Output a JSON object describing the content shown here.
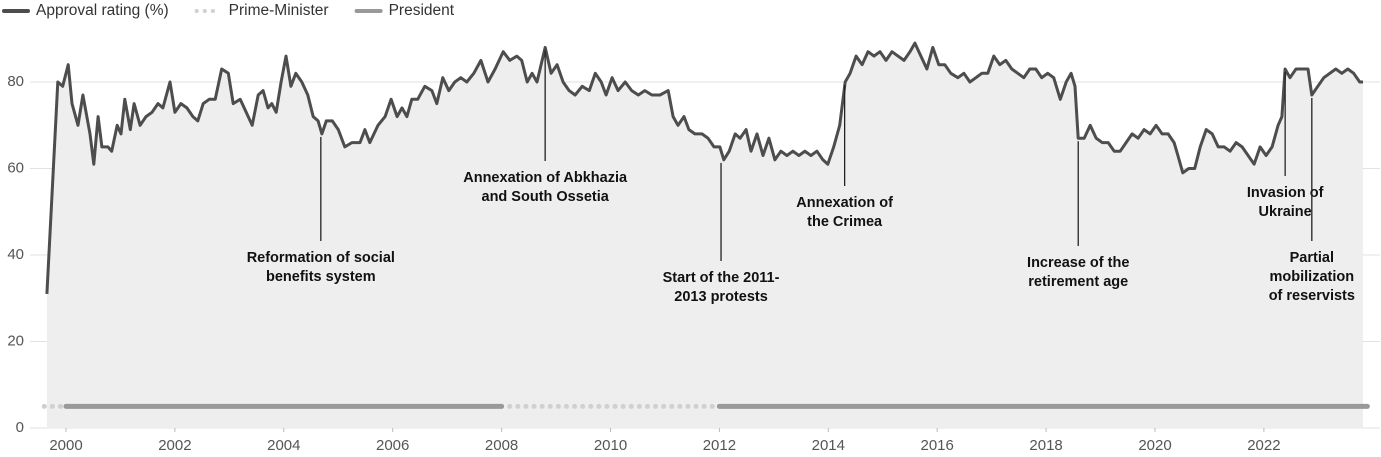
{
  "chart_data": {
    "type": "line",
    "xlim": [
      1999.6,
      2023.9
    ],
    "xticks": [
      2000,
      2002,
      2004,
      2006,
      2008,
      2010,
      2012,
      2014,
      2016,
      2018,
      2020,
      2022
    ],
    "ylim": [
      0,
      90
    ],
    "yticks": [
      0,
      20,
      40,
      60,
      80
    ],
    "grid": true,
    "legend": "top-left",
    "series": [
      {
        "name": "Approval rating (%)",
        "color": "#4d4d4d",
        "fill": "#eeeeee",
        "x": [
          1999.65,
          1999.74,
          1999.85,
          1999.94,
          2000.04,
          2000.11,
          2000.22,
          2000.31,
          2000.44,
          2000.51,
          2000.59,
          2000.66,
          2000.77,
          2000.84,
          2000.94,
          2001.01,
          2001.08,
          2001.18,
          2001.25,
          2001.36,
          2001.47,
          2001.58,
          2001.69,
          2001.78,
          2001.91,
          2002.0,
          2002.11,
          2002.22,
          2002.33,
          2002.42,
          2002.52,
          2002.63,
          2002.74,
          2002.86,
          2002.98,
          2003.07,
          2003.2,
          2003.31,
          2003.42,
          2003.53,
          2003.62,
          2003.71,
          2003.78,
          2003.86,
          2003.95,
          2004.04,
          2004.13,
          2004.22,
          2004.33,
          2004.44,
          2004.54,
          2004.63,
          2004.7,
          2004.78,
          2004.89,
          2005.0,
          2005.12,
          2005.25,
          2005.4,
          2005.49,
          2005.58,
          2005.73,
          2005.86,
          2005.97,
          2006.08,
          2006.17,
          2006.26,
          2006.35,
          2006.46,
          2006.59,
          2006.72,
          2006.81,
          2006.92,
          2007.03,
          2007.14,
          2007.25,
          2007.36,
          2007.49,
          2007.62,
          2007.75,
          2007.88,
          2008.03,
          2008.15,
          2008.28,
          2008.37,
          2008.47,
          2008.56,
          2008.65,
          2008.8,
          2008.91,
          2009.02,
          2009.13,
          2009.24,
          2009.35,
          2009.48,
          2009.61,
          2009.72,
          2009.83,
          2009.92,
          2010.03,
          2010.14,
          2010.27,
          2010.39,
          2010.51,
          2010.63,
          2010.76,
          2010.91,
          2011.06,
          2011.15,
          2011.24,
          2011.35,
          2011.44,
          2011.55,
          2011.68,
          2011.79,
          2011.9,
          2012.01,
          2012.08,
          2012.18,
          2012.29,
          2012.38,
          2012.49,
          2012.58,
          2012.69,
          2012.8,
          2012.91,
          2013.02,
          2013.13,
          2013.24,
          2013.35,
          2013.46,
          2013.57,
          2013.68,
          2013.79,
          2013.9,
          2013.99,
          2014.1,
          2014.21,
          2014.31,
          2014.4,
          2014.51,
          2014.62,
          2014.73,
          2014.84,
          2014.95,
          2015.06,
          2015.17,
          2015.28,
          2015.39,
          2015.5,
          2015.59,
          2015.7,
          2015.81,
          2015.92,
          2016.03,
          2016.14,
          2016.25,
          2016.38,
          2016.49,
          2016.6,
          2016.71,
          2016.82,
          2016.93,
          2017.04,
          2017.15,
          2017.26,
          2017.37,
          2017.48,
          2017.59,
          2017.7,
          2017.81,
          2017.92,
          2018.03,
          2018.14,
          2018.26,
          2018.37,
          2018.46,
          2018.53,
          2018.59,
          2018.7,
          2018.81,
          2018.92,
          2019.03,
          2019.14,
          2019.25,
          2019.36,
          2019.47,
          2019.58,
          2019.69,
          2019.8,
          2019.91,
          2020.02,
          2020.13,
          2020.24,
          2020.35,
          2020.42,
          2020.51,
          2020.62,
          2020.73,
          2020.83,
          2020.94,
          2021.05,
          2021.16,
          2021.27,
          2021.38,
          2021.49,
          2021.6,
          2021.71,
          2021.82,
          2021.93,
          2022.04,
          2022.15,
          2022.26,
          2022.33,
          2022.39,
          2022.48,
          2022.59,
          2022.7,
          2022.81,
          2022.88,
          2022.99,
          2023.1,
          2023.21,
          2023.32,
          2023.43,
          2023.54,
          2023.65,
          2023.76,
          2023.82
        ],
        "values": [
          31,
          53,
          80,
          79,
          84,
          75,
          70,
          77,
          68,
          61,
          72,
          65,
          65,
          64,
          70,
          68,
          76,
          69,
          75,
          70,
          72,
          73,
          75,
          74,
          80,
          73,
          75,
          74,
          72,
          71,
          75,
          76,
          76,
          83,
          82,
          75,
          76,
          73,
          70,
          77,
          78,
          74,
          75,
          73,
          80,
          86,
          79,
          82,
          80,
          77,
          72,
          71,
          68,
          71,
          71,
          69,
          65,
          66,
          66,
          69,
          66,
          70,
          72,
          76,
          72,
          74,
          72,
          76,
          76,
          79,
          78,
          75,
          81,
          78,
          80,
          81,
          80,
          82,
          85,
          80,
          83,
          87,
          85,
          86,
          85,
          80,
          82,
          80,
          88,
          82,
          84,
          80,
          78,
          77,
          79,
          78,
          82,
          80,
          77,
          81,
          78,
          80,
          78,
          77,
          78,
          77,
          77,
          78,
          72,
          70,
          72,
          69,
          68,
          68,
          67,
          65,
          65,
          62,
          64,
          68,
          67,
          69,
          64,
          68,
          63,
          67,
          62,
          64,
          63,
          64,
          63,
          64,
          63,
          64,
          62,
          61,
          65,
          70,
          80,
          82,
          86,
          84,
          87,
          86,
          87,
          85,
          87,
          86,
          85,
          87,
          89,
          86,
          83,
          88,
          84,
          84,
          82,
          81,
          82,
          80,
          81,
          82,
          82,
          86,
          84,
          85,
          83,
          82,
          81,
          83,
          83,
          81,
          82,
          81,
          76,
          80,
          82,
          79,
          67,
          67,
          70,
          67,
          66,
          66,
          64,
          64,
          66,
          68,
          67,
          69,
          68,
          70,
          68,
          68,
          66,
          63,
          59,
          60,
          60,
          65,
          69,
          68,
          65,
          65,
          64,
          66,
          65,
          63,
          61,
          65,
          63,
          65,
          70,
          72,
          83,
          81,
          83,
          83,
          83,
          77,
          79,
          81,
          82,
          83,
          82,
          83,
          82,
          80,
          80
        ]
      },
      {
        "name": "Prime-Minister",
        "color": "#d0d0d0",
        "style": "dotted",
        "value": 5,
        "periods": [
          {
            "start": 1999.6,
            "end": 2000.0
          },
          {
            "start": 2008.0,
            "end": 2012.0
          }
        ]
      },
      {
        "name": "President",
        "color": "#999999",
        "style": "solid",
        "value": 5,
        "periods": [
          {
            "start": 2000.0,
            "end": 2008.0
          },
          {
            "start": 2012.0,
            "end": 2023.9
          }
        ]
      }
    ],
    "annotations": [
      {
        "text": [
          "Reformation of social",
          "benefits system"
        ],
        "x": 2004.68
      },
      {
        "text": [
          "Annexation of Abkhazia",
          "and South Ossetia"
        ],
        "x": 2008.8
      },
      {
        "text": [
          "Start of the 2011-",
          "2013 protests"
        ],
        "x": 2012.03
      },
      {
        "text": [
          "Annexation of",
          "the Crimea"
        ],
        "x": 2014.3
      },
      {
        "text": [
          "Increase of the",
          "retirement age"
        ],
        "x": 2018.59
      },
      {
        "text": [
          "Invasion of",
          "Ukraine"
        ],
        "x": 2022.39
      },
      {
        "text": [
          "Partial",
          "mobilization",
          "of reservists"
        ],
        "x": 2022.88
      }
    ]
  }
}
